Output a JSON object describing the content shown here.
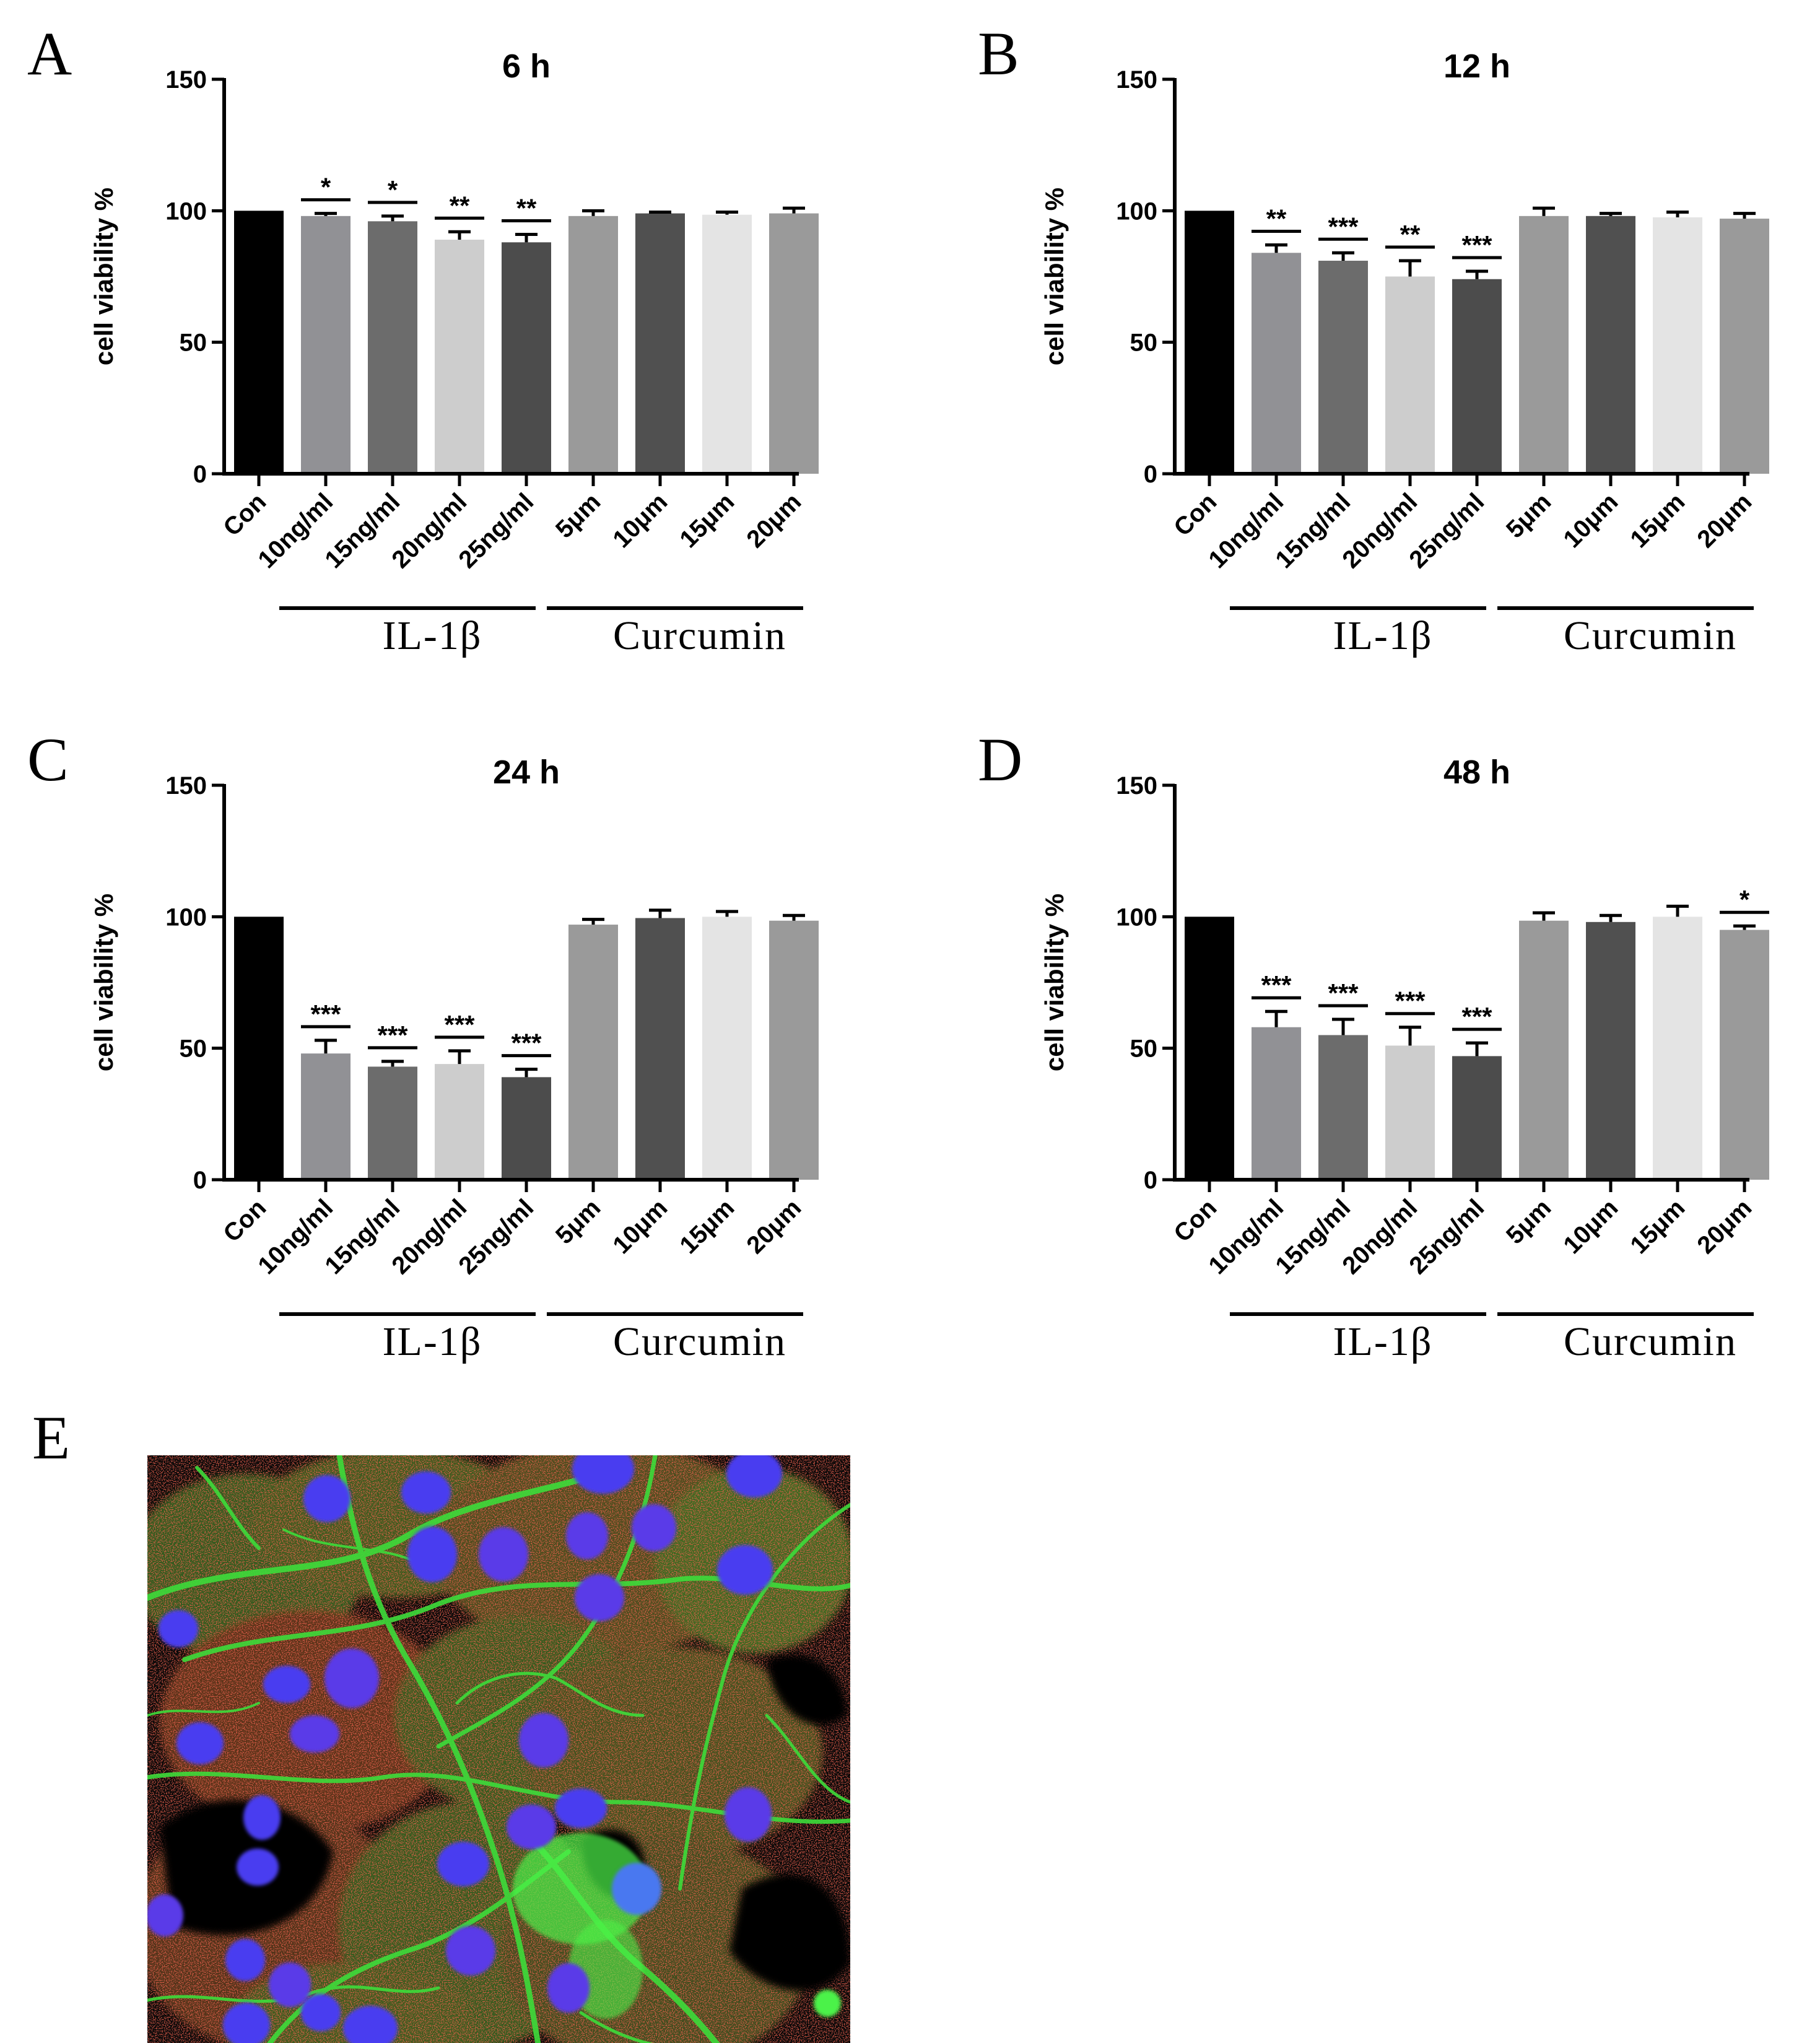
{
  "colors": {
    "bars": [
      "#000000",
      "#919195",
      "#6c6c6c",
      "#cdcdcd",
      "#4c4c4c",
      "#9a9a9a",
      "#505050",
      "#e4e4e4",
      "#9a9a9a"
    ],
    "axis": "#000000"
  },
  "chart_data": [
    {
      "type": "bar",
      "panel": "A",
      "title": "6 h",
      "ylabel": "cell viability %",
      "ylim": [
        0,
        150
      ],
      "yticks": [
        0,
        50,
        100,
        150
      ],
      "categories": [
        "Con",
        "10ng/ml",
        "15ng/ml",
        "20ng/ml",
        "25ng/ml",
        "5μm",
        "10μm",
        "15μm",
        "20μm"
      ],
      "values": [
        100,
        98,
        96,
        89,
        88,
        98,
        99,
        98.5,
        99
      ],
      "errors": [
        0,
        1,
        2,
        3,
        3,
        2,
        0.5,
        1,
        2
      ],
      "significance": [
        "",
        "*",
        "*",
        "**",
        "**",
        "",
        "",
        "",
        ""
      ],
      "groups": [
        {
          "label": "IL-1β",
          "from": 1,
          "to": 4
        },
        {
          "label": "Curcumin",
          "from": 5,
          "to": 8
        }
      ]
    },
    {
      "type": "bar",
      "panel": "B",
      "title": "12 h",
      "ylabel": "cell viability %",
      "ylim": [
        0,
        150
      ],
      "yticks": [
        0,
        50,
        100,
        150
      ],
      "categories": [
        "Con",
        "10ng/ml",
        "15ng/ml",
        "20ng/ml",
        "25ng/ml",
        "5μm",
        "10μm",
        "15μm",
        "20μm"
      ],
      "values": [
        100,
        84,
        81,
        75,
        74,
        98,
        98,
        97.5,
        97
      ],
      "errors": [
        0,
        3,
        3,
        6,
        3,
        3,
        1,
        2,
        2
      ],
      "significance": [
        "",
        "**",
        "***",
        "**",
        "***",
        "",
        "",
        "",
        ""
      ],
      "groups": [
        {
          "label": "IL-1β",
          "from": 1,
          "to": 4
        },
        {
          "label": "Curcumin",
          "from": 5,
          "to": 8
        }
      ]
    },
    {
      "type": "bar",
      "panel": "C",
      "title": "24 h",
      "ylabel": "cell viability %",
      "ylim": [
        0,
        150
      ],
      "yticks": [
        0,
        50,
        100,
        150
      ],
      "categories": [
        "Con",
        "10ng/ml",
        "15ng/ml",
        "20ng/ml",
        "25ng/ml",
        "5μm",
        "10μm",
        "15μm",
        "20μm"
      ],
      "values": [
        100,
        48,
        43,
        44,
        39,
        97,
        99.5,
        100,
        98.5
      ],
      "errors": [
        0,
        5,
        2,
        5,
        3,
        2,
        3,
        2,
        2
      ],
      "significance": [
        "",
        "***",
        "***",
        "***",
        "***",
        "",
        "",
        "",
        ""
      ],
      "groups": [
        {
          "label": "IL-1β",
          "from": 1,
          "to": 4
        },
        {
          "label": "Curcumin",
          "from": 5,
          "to": 8
        }
      ]
    },
    {
      "type": "bar",
      "panel": "D",
      "title": "48 h",
      "ylabel": "cell viability %",
      "ylim": [
        0,
        150
      ],
      "yticks": [
        0,
        50,
        100,
        150
      ],
      "categories": [
        "Con",
        "10ng/ml",
        "15ng/ml",
        "20ng/ml",
        "25ng/ml",
        "5μm",
        "10μm",
        "15μm",
        "20μm"
      ],
      "values": [
        100,
        58,
        55,
        51,
        47,
        98.5,
        98,
        100,
        95
      ],
      "errors": [
        0,
        6,
        6,
        7,
        5,
        3,
        2.5,
        4,
        1.5
      ],
      "significance": [
        "",
        "***",
        "***",
        "***",
        "***",
        "",
        "",
        "",
        "*"
      ],
      "groups": [
        {
          "label": "IL-1β",
          "from": 1,
          "to": 4
        },
        {
          "label": "Curcumin",
          "from": 5,
          "to": 8
        }
      ]
    }
  ],
  "micrograph": {
    "panel": "E",
    "background": "#080808",
    "cytoskeleton_color": "#3ddc3a",
    "cytoplasm_color": "#c42a1e",
    "nucleus_color": "#4a3cf0"
  }
}
